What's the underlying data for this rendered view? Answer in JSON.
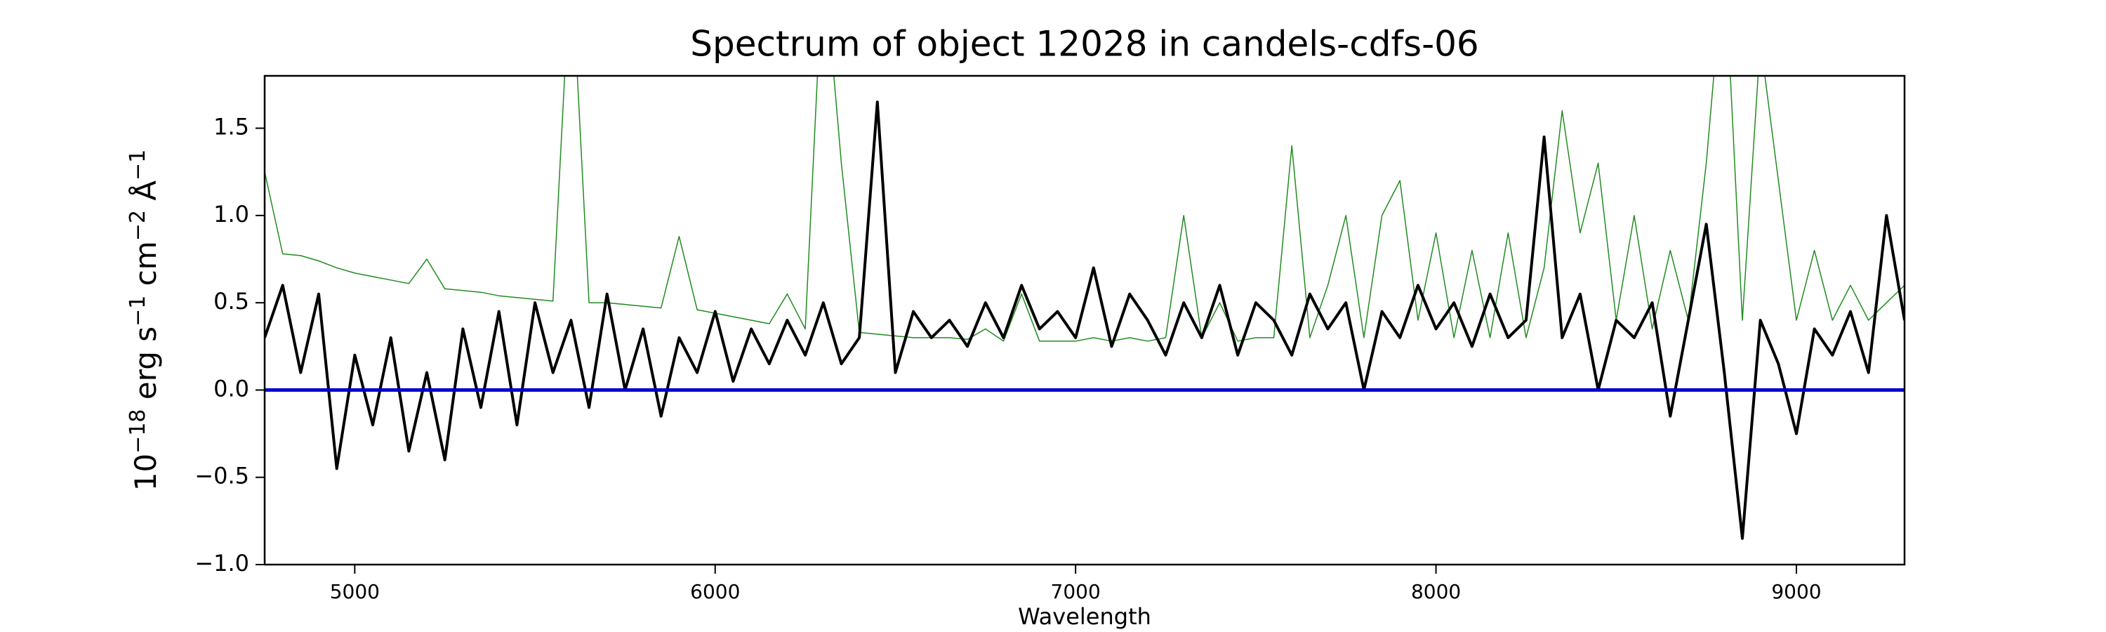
{
  "chart_data": {
    "type": "line",
    "title": "Spectrum of object 12028 in candels-cdfs-06",
    "xlabel": "Wavelength",
    "ylabel": [
      "10",
      "−18",
      " erg s",
      "−1",
      " cm",
      "−2",
      " Å",
      "−1"
    ],
    "xlim": [
      4750,
      9300
    ],
    "ylim": [
      -1.0,
      1.8
    ],
    "xticks": [
      5000,
      6000,
      7000,
      8000,
      9000
    ],
    "yticks": [
      {
        "value": -1.0,
        "label": "−1.0"
      },
      {
        "value": -0.5,
        "label": "−0.5"
      },
      {
        "value": 0.0,
        "label": "0.0"
      },
      {
        "value": 0.5,
        "label": "0.5"
      },
      {
        "value": 1.0,
        "label": "1.0"
      },
      {
        "value": 1.5,
        "label": "1.5"
      }
    ],
    "grid": false,
    "x": [
      4750,
      4800,
      4850,
      4900,
      4950,
      5000,
      5050,
      5100,
      5150,
      5200,
      5250,
      5300,
      5350,
      5400,
      5450,
      5500,
      5550,
      5600,
      5650,
      5700,
      5750,
      5800,
      5850,
      5900,
      5950,
      6000,
      6050,
      6100,
      6150,
      6200,
      6250,
      6300,
      6350,
      6400,
      6450,
      6500,
      6550,
      6600,
      6650,
      6700,
      6750,
      6800,
      6850,
      6900,
      6950,
      7000,
      7050,
      7100,
      7150,
      7200,
      7250,
      7300,
      7350,
      7400,
      7450,
      7500,
      7550,
      7600,
      7650,
      7700,
      7750,
      7800,
      7850,
      7900,
      7950,
      8000,
      8050,
      8100,
      8150,
      8200,
      8250,
      8300,
      8350,
      8400,
      8450,
      8500,
      8550,
      8600,
      8650,
      8700,
      8750,
      8800,
      8850,
      8900,
      8950,
      9000,
      9050,
      9100,
      9150,
      9200,
      9250,
      9300
    ],
    "series": [
      {
        "color": "#228b22",
        "width": 1.5,
        "values": [
          1.25,
          0.78,
          0.77,
          0.74,
          0.7,
          0.67,
          0.65,
          0.63,
          0.61,
          0.75,
          0.58,
          0.57,
          0.56,
          0.54,
          0.53,
          0.52,
          0.51,
          2.5,
          0.5,
          0.5,
          0.49,
          0.48,
          0.47,
          0.88,
          0.46,
          0.44,
          0.42,
          0.4,
          0.38,
          0.55,
          0.35,
          2.5,
          1.3,
          0.33,
          0.32,
          0.31,
          0.3,
          0.3,
          0.3,
          0.29,
          0.35,
          0.28,
          0.55,
          0.28,
          0.28,
          0.28,
          0.3,
          0.28,
          0.3,
          0.28,
          0.3,
          1.0,
          0.3,
          0.5,
          0.28,
          0.3,
          0.3,
          1.4,
          0.3,
          0.6,
          1.0,
          0.3,
          1.0,
          1.2,
          0.4,
          0.9,
          0.3,
          0.8,
          0.3,
          0.9,
          0.3,
          0.7,
          1.6,
          0.9,
          1.3,
          0.4,
          1.0,
          0.35,
          0.8,
          0.4,
          1.3,
          2.5,
          0.4,
          2.0,
          1.2,
          0.4,
          0.8,
          0.4,
          0.6,
          0.4,
          0.5,
          0.6
        ]
      },
      {
        "color": "#000000",
        "width": 4,
        "values": [
          0.3,
          0.6,
          0.1,
          0.55,
          -0.45,
          0.2,
          -0.2,
          0.3,
          -0.35,
          0.1,
          -0.4,
          0.35,
          -0.1,
          0.45,
          -0.2,
          0.5,
          0.1,
          0.4,
          -0.1,
          0.55,
          0.0,
          0.35,
          -0.15,
          0.3,
          0.1,
          0.45,
          0.05,
          0.35,
          0.15,
          0.4,
          0.2,
          0.5,
          0.15,
          0.3,
          1.65,
          0.1,
          0.45,
          0.3,
          0.4,
          0.25,
          0.5,
          0.3,
          0.6,
          0.35,
          0.45,
          0.3,
          0.7,
          0.25,
          0.55,
          0.4,
          0.2,
          0.5,
          0.3,
          0.6,
          0.2,
          0.5,
          0.4,
          0.2,
          0.55,
          0.35,
          0.5,
          0.0,
          0.45,
          0.3,
          0.6,
          0.35,
          0.5,
          0.25,
          0.55,
          0.3,
          0.4,
          1.45,
          0.3,
          0.55,
          0.0,
          0.4,
          0.3,
          0.5,
          -0.15,
          0.4,
          0.95,
          0.1,
          -0.85,
          0.4,
          0.15,
          -0.25,
          0.35,
          0.2,
          0.45,
          0.1,
          1.0,
          0.4
        ]
      },
      {
        "color": "#0000cd",
        "width": 5,
        "x": [
          4750,
          9300
        ],
        "values": [
          0,
          0
        ]
      }
    ]
  }
}
